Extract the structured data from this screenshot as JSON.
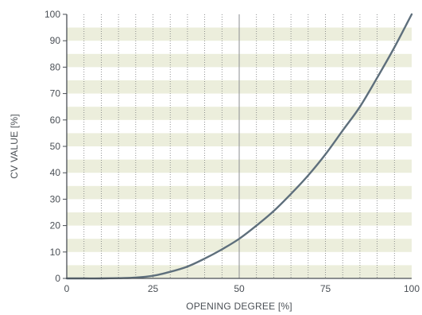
{
  "chart_data": {
    "type": "line",
    "title": "",
    "xlabel": "OPENING DEGREE [%]",
    "ylabel": "CV VALUE [%]",
    "xlim": [
      0,
      100
    ],
    "ylim": [
      0,
      100
    ],
    "x_ticks": [
      "0",
      "25",
      "50",
      "75",
      "100"
    ],
    "y_ticks": [
      "0",
      "10",
      "20",
      "30",
      "40",
      "50",
      "60",
      "70",
      "80",
      "90",
      "100"
    ],
    "grid": true,
    "legend": "none",
    "highlight_x": 50,
    "series": [
      {
        "name": "",
        "color": "#5e6f7c",
        "x": [
          0,
          5,
          10,
          15,
          20,
          25,
          30,
          35,
          40,
          45,
          50,
          55,
          60,
          65,
          70,
          75,
          80,
          85,
          90,
          95,
          100
        ],
        "y": [
          0,
          0,
          0,
          0.1,
          0.3,
          1,
          2.5,
          4.5,
          7.5,
          11,
          15,
          20,
          25.5,
          32,
          39,
          47,
          56,
          65,
          76,
          87.5,
          100
        ]
      }
    ],
    "colors": {
      "band": "#eceedc",
      "vertical_grid": "#77797b",
      "highlight_line": "#8b8e92",
      "axis": "#4a4f55",
      "text": "#4a4f55"
    }
  }
}
